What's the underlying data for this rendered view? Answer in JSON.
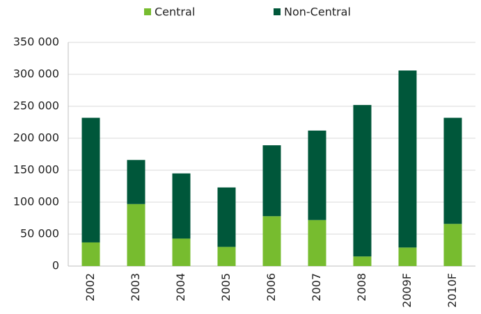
{
  "chart_data": {
    "type": "stacked_bar",
    "categories": [
      "2002",
      "2003",
      "2004",
      "2005",
      "2006",
      "2007",
      "2008",
      "2009F",
      "2010F"
    ],
    "series": [
      {
        "name": "Central",
        "color": "#77bc2f",
        "values": [
          37000,
          97000,
          43000,
          30000,
          78000,
          72000,
          15000,
          29000,
          66000
        ]
      },
      {
        "name": "Non-Central",
        "color": "#00573a",
        "values": [
          195000,
          69000,
          102000,
          93000,
          111000,
          140000,
          237000,
          277000,
          166000
        ]
      }
    ],
    "ylim": [
      0,
      350000
    ],
    "yticks": [
      {
        "value": 0,
        "label": "0"
      },
      {
        "value": 50000,
        "label": "50 000"
      },
      {
        "value": 100000,
        "label": "100 000"
      },
      {
        "value": 150000,
        "label": "150 000"
      },
      {
        "value": 200000,
        "label": "200 000"
      },
      {
        "value": 250000,
        "label": "250 000"
      },
      {
        "value": 300000,
        "label": "300 000"
      },
      {
        "value": 350000,
        "label": "350 000"
      }
    ],
    "grid": true,
    "legend": "top"
  }
}
